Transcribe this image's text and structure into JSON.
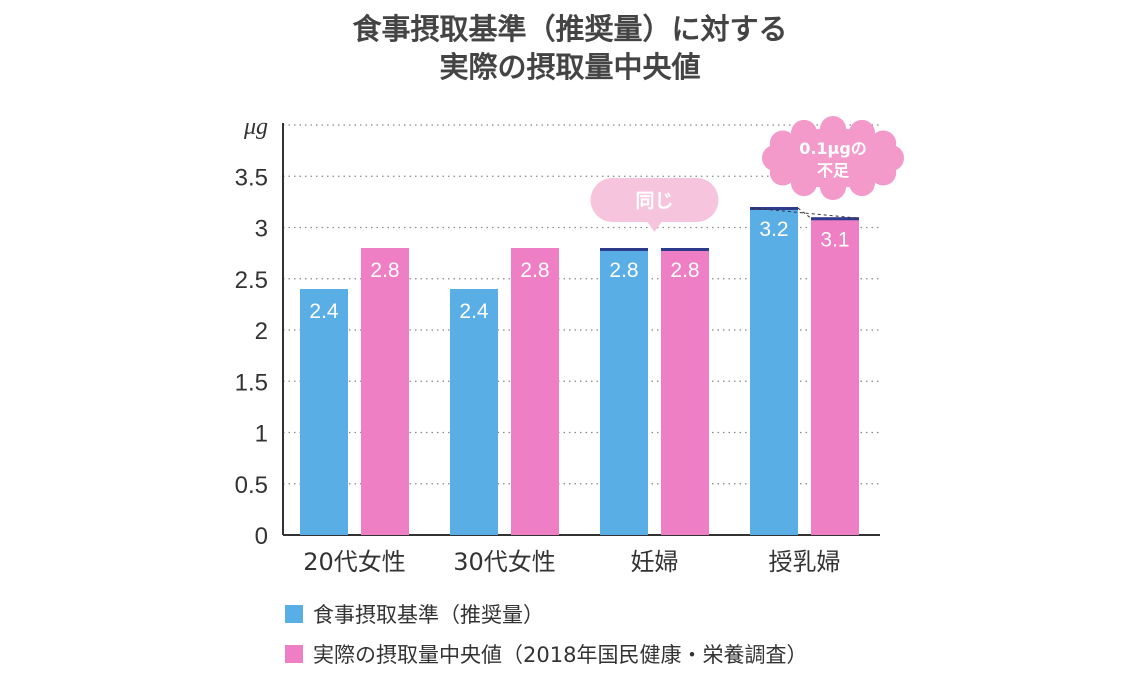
{
  "title": {
    "line1": "食事摂取基準（推奨量）に対する",
    "line2": "実際の摂取量中央値"
  },
  "chart_data": {
    "type": "bar",
    "unit": "μg",
    "categories": [
      "20代女性",
      "30代女性",
      "妊婦",
      "授乳婦"
    ],
    "series": [
      {
        "name": "食事摂取基準（推奨量）",
        "color": "#5aaee6",
        "values": [
          2.4,
          2.4,
          2.8,
          3.2
        ]
      },
      {
        "name": "実際の摂取量中央値（2018年国民健康・栄養調査）",
        "color": "#ef7fc5",
        "values": [
          2.8,
          2.8,
          2.8,
          3.1
        ]
      }
    ],
    "y_ticks": [
      "0",
      "0.5",
      "1",
      "1.5",
      "2",
      "2.5",
      "3",
      "3.5"
    ],
    "ylim": [
      0,
      4
    ],
    "grid": true,
    "cap_color": "#2e3a8c",
    "annotations": [
      {
        "category": "妊婦",
        "text": "同じ",
        "color": "#f7c4dd"
      },
      {
        "category": "授乳婦",
        "text": "0.1μgの不足",
        "lines": [
          "0.1μgの",
          "不足"
        ],
        "color": "#f49acb"
      }
    ]
  }
}
